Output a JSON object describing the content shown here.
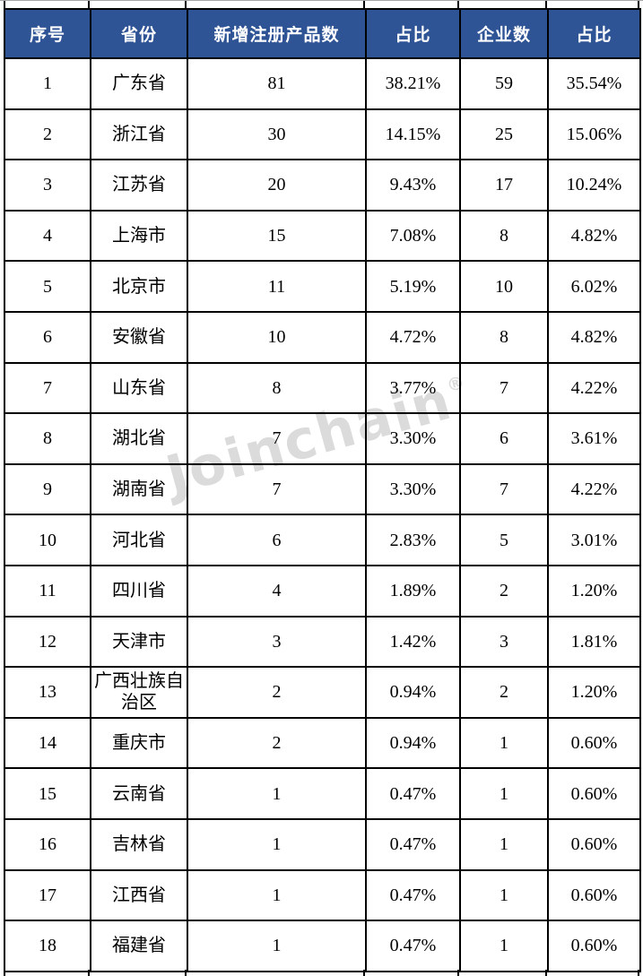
{
  "colors": {
    "header_bg": "#2F5496",
    "header_text": "#FFFFFF",
    "grid_border": "#000000",
    "watermark_color": "#DBDBDB"
  },
  "watermark": {
    "text": "Joinchain",
    "reg_mark": "®"
  },
  "chart_data": {
    "type": "table",
    "columns": [
      "序号",
      "省份",
      "新增注册产品数",
      "占比",
      "企业数",
      "占比"
    ],
    "rows": [
      [
        "1",
        "广东省",
        "81",
        "38.21%",
        "59",
        "35.54%"
      ],
      [
        "2",
        "浙江省",
        "30",
        "14.15%",
        "25",
        "15.06%"
      ],
      [
        "3",
        "江苏省",
        "20",
        "9.43%",
        "17",
        "10.24%"
      ],
      [
        "4",
        "上海市",
        "15",
        "7.08%",
        "8",
        "4.82%"
      ],
      [
        "5",
        "北京市",
        "11",
        "5.19%",
        "10",
        "6.02%"
      ],
      [
        "6",
        "安徽省",
        "10",
        "4.72%",
        "8",
        "4.82%"
      ],
      [
        "7",
        "山东省",
        "8",
        "3.77%",
        "7",
        "4.22%"
      ],
      [
        "8",
        "湖北省",
        "7",
        "3.30%",
        "6",
        "3.61%"
      ],
      [
        "9",
        "湖南省",
        "7",
        "3.30%",
        "7",
        "4.22%"
      ],
      [
        "10",
        "河北省",
        "6",
        "2.83%",
        "5",
        "3.01%"
      ],
      [
        "11",
        "四川省",
        "4",
        "1.89%",
        "2",
        "1.20%"
      ],
      [
        "12",
        "天津市",
        "3",
        "1.42%",
        "3",
        "1.81%"
      ],
      [
        "13",
        "广西壮族自治区",
        "2",
        "0.94%",
        "2",
        "1.20%"
      ],
      [
        "14",
        "重庆市",
        "2",
        "0.94%",
        "1",
        "0.60%"
      ],
      [
        "15",
        "云南省",
        "1",
        "0.47%",
        "1",
        "0.60%"
      ],
      [
        "16",
        "吉林省",
        "1",
        "0.47%",
        "1",
        "0.60%"
      ],
      [
        "17",
        "江西省",
        "1",
        "0.47%",
        "1",
        "0.60%"
      ],
      [
        "18",
        "福建省",
        "1",
        "0.47%",
        "1",
        "0.60%"
      ]
    ]
  }
}
